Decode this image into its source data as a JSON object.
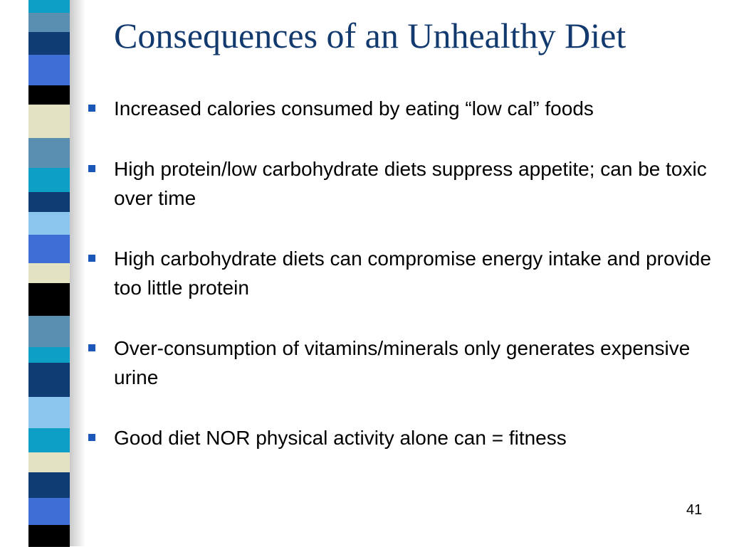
{
  "slide": {
    "title": "Consequences of an Unhealthy Diet",
    "bullets": [
      "Increased calories consumed by eating “low cal” foods",
      "High protein/low carbohydrate diets suppress appetite; can be toxic over time",
      "High carbohydrate diets can compromise energy intake and provide too little protein",
      "Over-consumption of vitamins/minerals only generates expensive urine",
      "Good diet NOR physical activity alone can = fitness"
    ],
    "page_number": "41"
  },
  "theme": {
    "title_color": "#123a6e",
    "bullet_color": "#1a57b8",
    "strip_colors": [
      "#5b8fb1",
      "#0e3c73",
      "#3e6fd6",
      "#000000",
      "#e3e2c2",
      "#8cc6ee",
      "#0e9fc6",
      "#0e3c73"
    ]
  }
}
